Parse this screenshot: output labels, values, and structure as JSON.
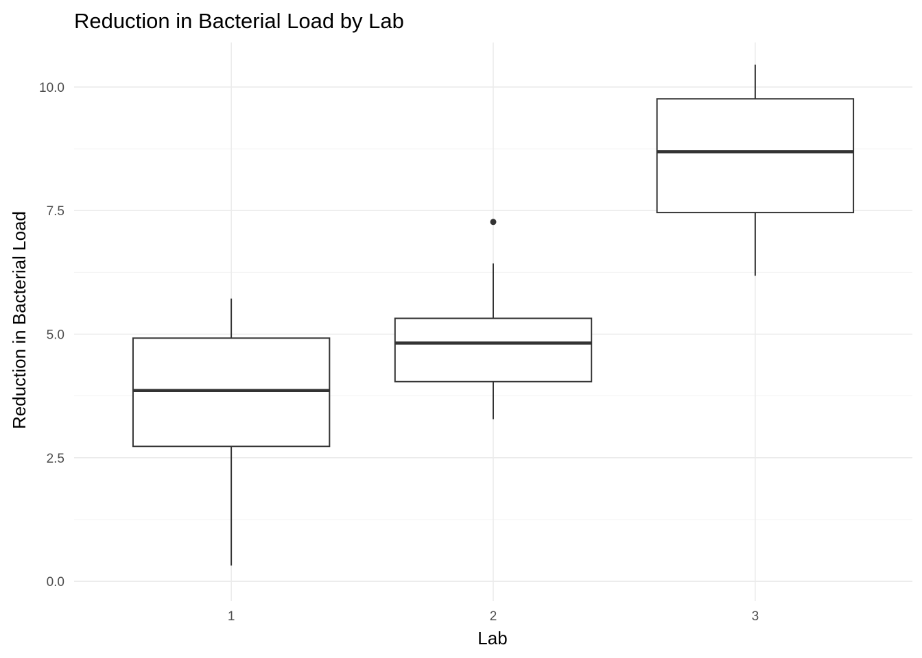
{
  "chart_data": {
    "type": "boxplot",
    "title": "Reduction in Bacterial Load by Lab",
    "xlabel": "Lab",
    "ylabel": "Reduction in Bacterial Load",
    "ylim": [
      -0.4,
      10.9
    ],
    "yticks": [
      0.0,
      2.5,
      5.0,
      7.5,
      10.0
    ],
    "ytick_labels": [
      "0.0",
      "2.5",
      "5.0",
      "7.5",
      "10.0"
    ],
    "grid": true,
    "categories": [
      "1",
      "2",
      "3"
    ],
    "boxes": [
      {
        "category": "1",
        "min": 0.32,
        "q1": 2.73,
        "median": 3.86,
        "q3": 4.92,
        "max": 5.72,
        "outliers": []
      },
      {
        "category": "2",
        "min": 3.28,
        "q1": 4.04,
        "median": 4.82,
        "q3": 5.32,
        "max": 6.43,
        "outliers": [
          7.27
        ]
      },
      {
        "category": "3",
        "min": 6.18,
        "q1": 7.46,
        "median": 8.69,
        "q3": 9.76,
        "max": 10.45,
        "outliers": []
      }
    ],
    "colors": {
      "box_stroke": "#333333",
      "box_fill": "#ffffff",
      "grid": "#ebebeb",
      "tick_text": "#4d4d4d"
    }
  }
}
